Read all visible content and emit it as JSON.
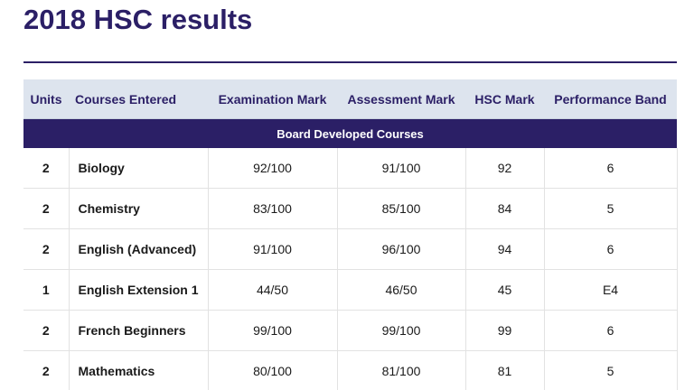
{
  "page": {
    "title": "2018 HSC results"
  },
  "table": {
    "columns": [
      "Units",
      "Courses Entered",
      "Examination Mark",
      "Assessment Mark",
      "HSC Mark",
      "Performance Band"
    ],
    "group_label": "Board Developed Courses",
    "rows": [
      {
        "units": "2",
        "course": "Biology",
        "exam": "92/100",
        "assessment": "91/100",
        "hsc": "92",
        "band": "6"
      },
      {
        "units": "2",
        "course": "Chemistry",
        "exam": "83/100",
        "assessment": "85/100",
        "hsc": "84",
        "band": "5"
      },
      {
        "units": "2",
        "course": "English (Advanced)",
        "exam": "91/100",
        "assessment": "96/100",
        "hsc": "94",
        "band": "6"
      },
      {
        "units": "1",
        "course": "English Extension 1",
        "exam": "44/50",
        "assessment": "46/50",
        "hsc": "45",
        "band": "E4"
      },
      {
        "units": "2",
        "course": "French Beginners",
        "exam": "99/100",
        "assessment": "99/100",
        "hsc": "99",
        "band": "6"
      },
      {
        "units": "2",
        "course": "Mathematics",
        "exam": "80/100",
        "assessment": "81/100",
        "hsc": "81",
        "band": "5"
      }
    ]
  },
  "colors": {
    "accent": "#2b1f66",
    "header_bg": "#dde4ee"
  }
}
